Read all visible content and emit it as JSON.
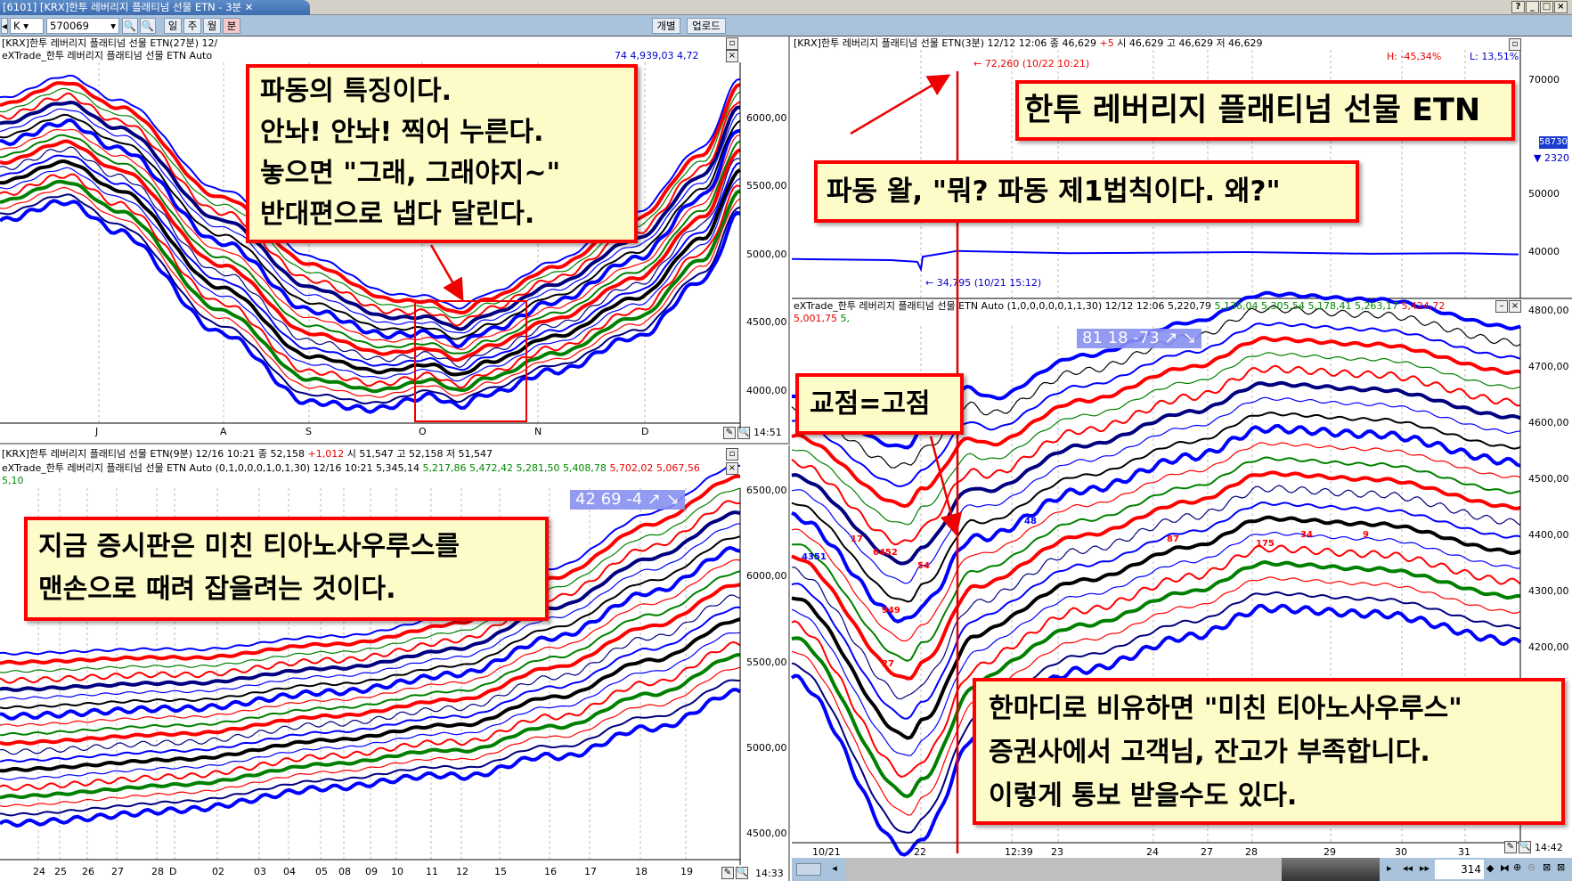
{
  "window": {
    "tab_title": "[6101] [KRX]한투 레버리지 플래티넘 선물 ETN - 3분",
    "buttons": [
      "?",
      "_",
      "□",
      "×"
    ]
  },
  "toolbar": {
    "market": "K",
    "code": "570069",
    "periods": [
      "일",
      "주",
      "월",
      "분"
    ],
    "individual": "개별",
    "upload": "업로드"
  },
  "top_left": {
    "header1": "[KRX]한투 레버리지 플래티넘 선물 ETN(27분) 12/",
    "header2": "eXTrade_한투 레버리지 플래티넘 선물 ETN Auto",
    "header2_values": "74 4,939,03 4,72",
    "y_ticks": [
      "6000,00",
      "5500,00",
      "5000,00",
      "4500,00",
      "4000,00"
    ],
    "x_ticks": [
      "J",
      "A",
      "S",
      "O",
      "N",
      "D"
    ],
    "time": "14:51"
  },
  "bottom_left": {
    "header1": {
      "title": "[KRX]한투 레버리지 플래티넘 선물 ETN(9분) 12/16 10:21",
      "close_label": "종 52,158",
      "change": "+1,012",
      "rest": "시 51,547 고 52,158 저 51,547"
    },
    "header2": {
      "title": "eXTrade_한투 레버리지 플래티넘 선물 ETN Auto  (0,1,0,0,0,1,0,1,30) 12/16 10:21 5,345,14",
      "green": "5,217,86 5,472,42 5,281,50 5,408,78",
      "red": "5,702,02 5,067,56",
      "tail": "5,10"
    },
    "badge": "42  69  -4 ↗ ↘",
    "y_ticks": [
      "6500,00",
      "6000,00",
      "5500,00",
      "5000,00",
      "4500,00"
    ],
    "x_ticks": [
      "24",
      "25",
      "26",
      "27",
      "28",
      "D",
      "02",
      "03",
      "04",
      "05",
      "08",
      "09",
      "10",
      "11",
      "12",
      "15",
      "16",
      "17",
      "18",
      "19"
    ],
    "time": "14:33"
  },
  "top_right": {
    "header": {
      "title": "[KRX]한투 레버리지 플래티넘 선물 ETN(3분) 12/12 12:06",
      "close_label": "종 46,629",
      "change": "+5",
      "rest": "시 46,629 고 46,629 저 46,629"
    },
    "high_pct": "H: -45,34%",
    "low_pct": "L: 13,51%",
    "max_label": "72,260 (10/22 10:21)",
    "min_label": "34,795 (10/21 15:12)",
    "y_ticks": [
      "70000",
      "50000",
      "40000"
    ],
    "current_value": "58730",
    "current_change": "▼ 2320"
  },
  "bottom_right": {
    "header": {
      "title": "eXTrade_한투 레버리지 플래티넘 선물 ETN Auto  (1,0,0,0,0,0,1,1,30) 12/12 12:06 5,220,79",
      "green": "5,136,04 5,305,54 5,178,41 5,263,17",
      "red": "5,424,72 5,001,75",
      "tail": "5,"
    },
    "badge": "81  18  -73 ↗ ↘",
    "y_ticks": [
      "4800,00",
      "4700,00",
      "4600,00",
      "4500,00",
      "4400,00",
      "4300,00",
      "4200,00"
    ],
    "x_ticks": [
      "10/21",
      "22",
      "12:39",
      "23",
      "24",
      "27",
      "28",
      "29",
      "30",
      "31"
    ],
    "time": "14:42",
    "annotations": [
      "4351",
      "6452",
      "54",
      "949",
      "17",
      "27",
      "48",
      "87",
      "175",
      "34",
      "9"
    ],
    "scroll_value": "314"
  },
  "callouts": {
    "wave": [
      "파동의 특징이다.",
      "안놔! 안놔! 찍어 누른다.",
      "놓으면 \"그래, 그래야지~\"",
      "반대편으로 냅다 달린다."
    ],
    "title": "한투 레버리지 플래티넘 선물 ETN",
    "law": "파동 왈, \"뭐? 파동 제1법칙이다. 왜?\"",
    "cross": "교점=고점",
    "market": [
      "지금 증시판은 미친 티아노사우루스를",
      "맨손으로 때려 잡을려는 것이다."
    ],
    "summary": [
      "한마디로 비유하면 \"미친 티아노사우루스\"",
      "증권사에서 고객님, 잔고가 부족합니다.",
      "이렇게 통보 받을수도 있다."
    ]
  },
  "colors": {
    "up": "#ff0000",
    "down": "#0000ff",
    "mid": "#008000",
    "dark": "#000080",
    "callout_bg": "#fdfbc8"
  }
}
